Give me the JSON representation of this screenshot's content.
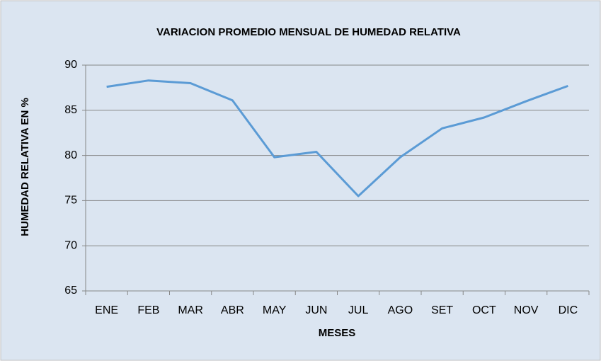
{
  "chart_data": {
    "type": "line",
    "title": "VARIACION PROMEDIO MENSUAL DE HUMEDAD RELATIVA",
    "x_label": "MESES",
    "y_label": "HUMEDAD RELATIVA EN %",
    "categories": [
      "ENE",
      "FEB",
      "MAR",
      "ABR",
      "MAY",
      "JUN",
      "JUL",
      "AGO",
      "SET",
      "OCT",
      "NOV",
      "DIC"
    ],
    "series": [
      {
        "color": "#5b9bd5",
        "values": [
          87.6,
          88.3,
          88.0,
          86.1,
          79.8,
          80.4,
          75.5,
          79.8,
          83.0,
          84.2,
          86.0,
          87.7
        ]
      }
    ],
    "ylim": [
      65,
      90
    ],
    "yticks": [
      65,
      70,
      75,
      80,
      85,
      90
    ],
    "grid": true
  }
}
